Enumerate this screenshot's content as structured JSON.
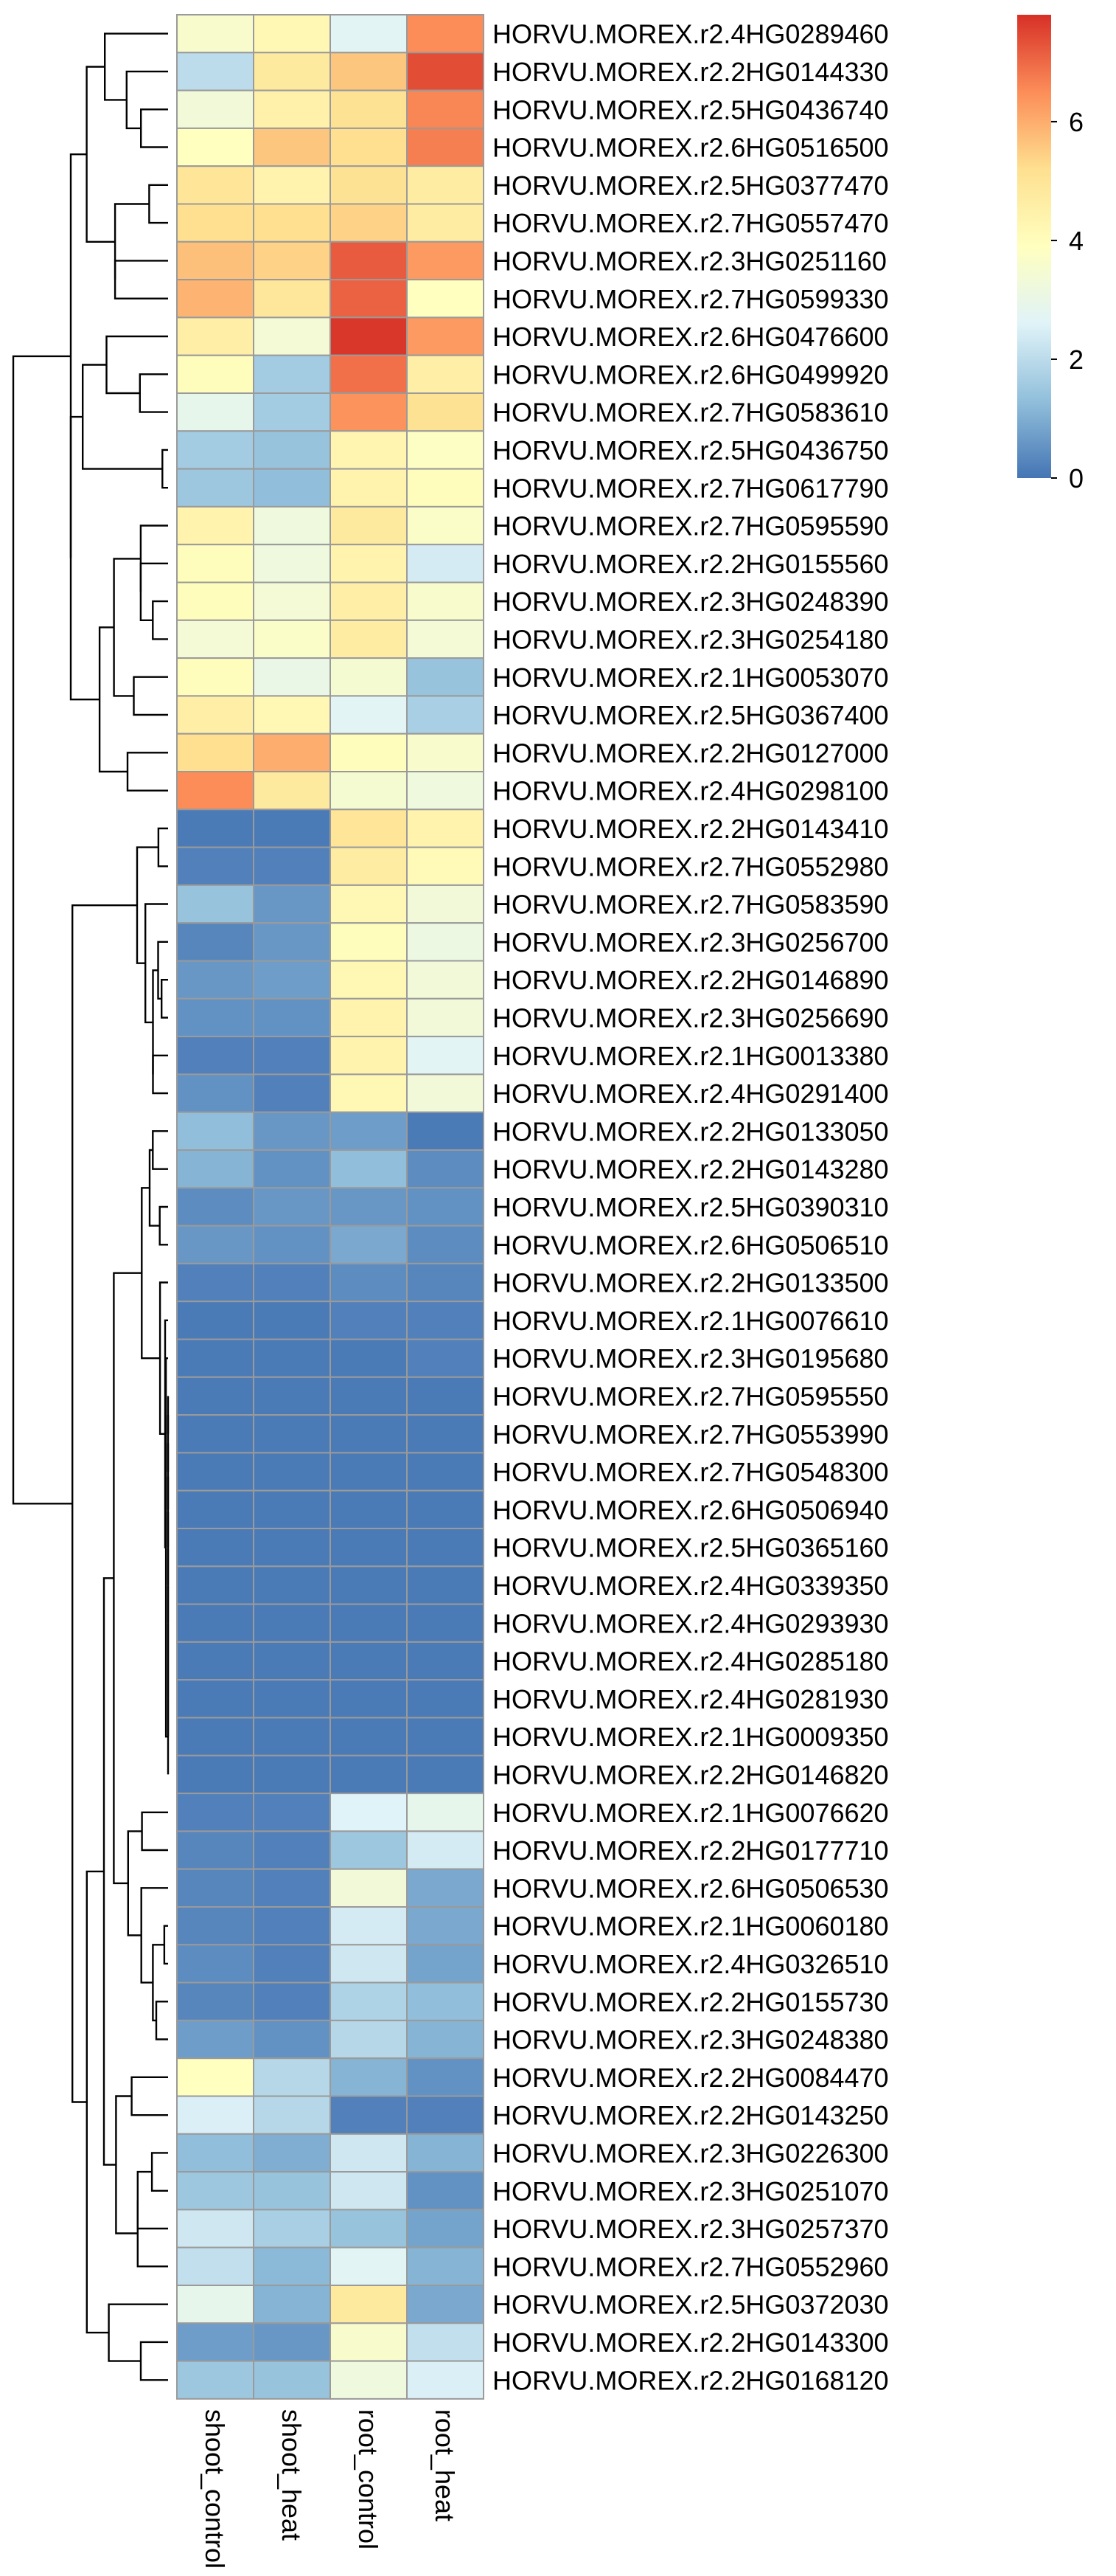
{
  "chart_data": {
    "type": "heatmap",
    "title": "",
    "xlabel": "",
    "ylabel": "",
    "columns": [
      "shoot_control",
      "shoot_heat",
      "root_control",
      "root_heat"
    ],
    "rows": [
      "HORVU.MOREX.r2.4HG0289460",
      "HORVU.MOREX.r2.2HG0144330",
      "HORVU.MOREX.r2.5HG0436740",
      "HORVU.MOREX.r2.6HG0516500",
      "HORVU.MOREX.r2.5HG0377470",
      "HORVU.MOREX.r2.7HG0557470",
      "HORVU.MOREX.r2.3HG0251160",
      "HORVU.MOREX.r2.7HG0599330",
      "HORVU.MOREX.r2.6HG0476600",
      "HORVU.MOREX.r2.6HG0499920",
      "HORVU.MOREX.r2.7HG0583610",
      "HORVU.MOREX.r2.5HG0436750",
      "HORVU.MOREX.r2.7HG0617790",
      "HORVU.MOREX.r2.7HG0595590",
      "HORVU.MOREX.r2.2HG0155560",
      "HORVU.MOREX.r2.3HG0248390",
      "HORVU.MOREX.r2.3HG0254180",
      "HORVU.MOREX.r2.1HG0053070",
      "HORVU.MOREX.r2.5HG0367400",
      "HORVU.MOREX.r2.2HG0127000",
      "HORVU.MOREX.r2.4HG0298100",
      "HORVU.MOREX.r2.2HG0143410",
      "HORVU.MOREX.r2.7HG0552980",
      "HORVU.MOREX.r2.7HG0583590",
      "HORVU.MOREX.r2.3HG0256700",
      "HORVU.MOREX.r2.2HG0146890",
      "HORVU.MOREX.r2.3HG0256690",
      "HORVU.MOREX.r2.1HG0013380",
      "HORVU.MOREX.r2.4HG0291400",
      "HORVU.MOREX.r2.2HG0133050",
      "HORVU.MOREX.r2.2HG0143280",
      "HORVU.MOREX.r2.5HG0390310",
      "HORVU.MOREX.r2.6HG0506510",
      "HORVU.MOREX.r2.2HG0133500",
      "HORVU.MOREX.r2.1HG0076610",
      "HORVU.MOREX.r2.3HG0195680",
      "HORVU.MOREX.r2.7HG0595550",
      "HORVU.MOREX.r2.7HG0553990",
      "HORVU.MOREX.r2.7HG0548300",
      "HORVU.MOREX.r2.6HG0506940",
      "HORVU.MOREX.r2.5HG0365160",
      "HORVU.MOREX.r2.4HG0339350",
      "HORVU.MOREX.r2.4HG0293930",
      "HORVU.MOREX.r2.4HG0285180",
      "HORVU.MOREX.r2.4HG0281930",
      "HORVU.MOREX.r2.1HG0009350",
      "HORVU.MOREX.r2.2HG0146820",
      "HORVU.MOREX.r2.1HG0076620",
      "HORVU.MOREX.r2.2HG0177710",
      "HORVU.MOREX.r2.6HG0506530",
      "HORVU.MOREX.r2.1HG0060180",
      "HORVU.MOREX.r2.4HG0326510",
      "HORVU.MOREX.r2.2HG0155730",
      "HORVU.MOREX.r2.3HG0248380",
      "HORVU.MOREX.r2.2HG0084470",
      "HORVU.MOREX.r2.2HG0143250",
      "HORVU.MOREX.r2.3HG0226300",
      "HORVU.MOREX.r2.3HG0251070",
      "HORVU.MOREX.r2.3HG0257370",
      "HORVU.MOREX.r2.7HG0552960",
      "HORVU.MOREX.r2.5HG0372030",
      "HORVU.MOREX.r2.2HG0143300",
      "HORVU.MOREX.r2.2HG0168120"
    ],
    "values": [
      [
        3.6,
        4.2,
        2.7,
        6.5
      ],
      [
        2.0,
        4.8,
        5.6,
        7.4
      ],
      [
        3.3,
        4.5,
        5.1,
        6.6
      ],
      [
        3.9,
        5.6,
        5.2,
        6.7
      ],
      [
        5.0,
        4.4,
        5.1,
        4.7
      ],
      [
        5.2,
        5.2,
        5.4,
        4.7
      ],
      [
        5.7,
        5.4,
        7.2,
        6.3
      ],
      [
        5.9,
        4.9,
        7.1,
        3.9
      ],
      [
        4.6,
        3.4,
        7.7,
        6.3
      ],
      [
        4.0,
        1.6,
        6.9,
        4.6
      ],
      [
        2.9,
        1.6,
        6.4,
        5.1
      ],
      [
        1.6,
        1.4,
        4.3,
        3.8
      ],
      [
        1.5,
        1.3,
        4.4,
        4.0
      ],
      [
        4.4,
        3.2,
        4.8,
        3.7
      ],
      [
        4.0,
        3.2,
        4.4,
        2.4
      ],
      [
        4.0,
        3.4,
        4.6,
        3.6
      ],
      [
        3.4,
        3.7,
        4.7,
        3.4
      ],
      [
        4.0,
        3.0,
        3.5,
        1.4
      ],
      [
        4.6,
        4.2,
        2.7,
        1.7
      ],
      [
        5.2,
        6.0,
        4.0,
        3.6
      ],
      [
        6.5,
        4.8,
        3.5,
        3.2
      ],
      [
        0.1,
        0.1,
        5.0,
        4.4
      ],
      [
        0.2,
        0.2,
        4.7,
        4.1
      ],
      [
        1.4,
        0.6,
        4.2,
        3.3
      ],
      [
        0.3,
        0.6,
        4.0,
        3.1
      ],
      [
        0.6,
        0.7,
        4.2,
        3.3
      ],
      [
        0.5,
        0.5,
        4.4,
        3.3
      ],
      [
        0.2,
        0.2,
        4.4,
        2.7
      ],
      [
        0.5,
        0.2,
        4.2,
        3.3
      ],
      [
        1.3,
        0.6,
        0.7,
        0.1
      ],
      [
        1.1,
        0.5,
        1.3,
        0.4
      ],
      [
        0.4,
        0.6,
        0.6,
        0.5
      ],
      [
        0.6,
        0.5,
        0.9,
        0.4
      ],
      [
        0.2,
        0.2,
        0.4,
        0.3
      ],
      [
        0.1,
        0.1,
        0.2,
        0.2
      ],
      [
        0.1,
        0.1,
        0.1,
        0.2
      ],
      [
        0.1,
        0.1,
        0.1,
        0.1
      ],
      [
        0.1,
        0.1,
        0.1,
        0.1
      ],
      [
        0.1,
        0.1,
        0.1,
        0.1
      ],
      [
        0.1,
        0.1,
        0.1,
        0.1
      ],
      [
        0.1,
        0.1,
        0.1,
        0.1
      ],
      [
        0.1,
        0.1,
        0.1,
        0.1
      ],
      [
        0.1,
        0.1,
        0.1,
        0.1
      ],
      [
        0.1,
        0.1,
        0.1,
        0.1
      ],
      [
        0.1,
        0.1,
        0.1,
        0.1
      ],
      [
        0.1,
        0.1,
        0.1,
        0.1
      ],
      [
        0.1,
        0.1,
        0.1,
        0.1
      ],
      [
        0.2,
        0.2,
        2.6,
        2.9
      ],
      [
        0.3,
        0.2,
        1.5,
        2.4
      ],
      [
        0.3,
        0.2,
        3.3,
        0.9
      ],
      [
        0.3,
        0.2,
        2.4,
        0.9
      ],
      [
        0.4,
        0.2,
        2.3,
        0.8
      ],
      [
        0.3,
        0.2,
        1.8,
        1.3
      ],
      [
        0.7,
        0.5,
        1.9,
        1.1
      ],
      [
        3.9,
        1.9,
        1.1,
        0.5
      ],
      [
        2.5,
        1.9,
        0.2,
        0.2
      ],
      [
        1.3,
        1.0,
        2.3,
        1.1
      ],
      [
        1.5,
        1.4,
        2.3,
        0.5
      ],
      [
        2.3,
        1.7,
        1.4,
        0.8
      ],
      [
        2.1,
        1.2,
        2.7,
        1.1
      ],
      [
        2.9,
        1.1,
        4.8,
        0.9
      ],
      [
        0.7,
        0.6,
        3.6,
        2.1
      ],
      [
        1.5,
        1.4,
        3.2,
        2.5
      ]
    ],
    "legend": {
      "ticks": [
        "0",
        "2",
        "4",
        "6"
      ],
      "range": [
        0,
        7.8
      ],
      "position": "top-right",
      "colors": [
        "#4575b4",
        "#91bfdb",
        "#e0f3f8",
        "#ffffbf",
        "#fee090",
        "#fc8d59",
        "#d73027"
      ]
    },
    "cell_border_color": "#9a9a9a",
    "dendrogram": "rows"
  }
}
